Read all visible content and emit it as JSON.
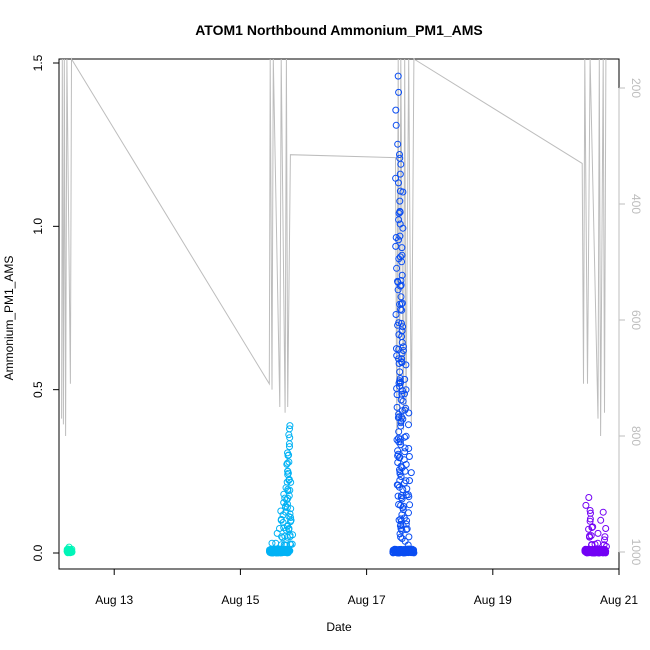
{
  "chart_data": {
    "type": "scatter",
    "title": "ATOM1 Northbound Ammonium_PM1_AMS",
    "xlabel": "Date",
    "ylabel": "Ammonium_PM1_AMS",
    "x_range_days": [
      "Aug 12 03:00",
      "Aug 21 00:00"
    ],
    "ylim": [
      0,
      1.5
    ],
    "x_ticks": [
      "Aug 13",
      "Aug 15",
      "Aug 17",
      "Aug 19",
      "Aug 21"
    ],
    "y_ticks": [
      "0.0",
      "0.5",
      "1.0",
      "1.5"
    ],
    "secondary_axis": {
      "side": "right",
      "color": "#bdbdbd",
      "ticks": [
        "200",
        "400",
        "600",
        "800",
        "1000"
      ],
      "range": [
        120,
        1020
      ],
      "inverted": true
    },
    "series": [
      {
        "color": "#00f5b8",
        "time_range": [
          "Aug 12 06:00",
          "Aug 12 08:00"
        ],
        "points": [
          [
            "Aug 12 06:10",
            0.005
          ],
          [
            "Aug 12 06:30",
            0.012
          ],
          [
            "Aug 12 06:50",
            0.018
          ],
          [
            "Aug 12 07:10",
            0.008
          ],
          [
            "Aug 12 07:30",
            0.01
          ],
          [
            "Aug 12 07:50",
            0.004
          ]
        ]
      },
      {
        "color": "#00b2f5",
        "time_range": [
          "Aug 15 11:00",
          "Aug 15 19:00"
        ],
        "points": [
          [
            "Aug 15 12:00",
            0.03
          ],
          [
            "Aug 15 14:00",
            0.06
          ],
          [
            "Aug 15 15:30",
            0.1
          ],
          [
            "Aug 15 16:30",
            0.18
          ],
          [
            "Aug 15 17:10",
            0.14
          ],
          [
            "Aug 15 18:00",
            0.24
          ],
          [
            "Aug 15 18:20",
            0.3
          ],
          [
            "Aug 15 18:40",
            0.38
          ],
          [
            "Aug 15 18:50",
            0.39
          ]
        ]
      },
      {
        "color": "#0a4df2",
        "time_range": [
          "Aug 17 10:00",
          "Aug 17 18:00"
        ],
        "points": [
          [
            "Aug 17 12:00",
            1.46
          ],
          [
            "Aug 17 12:10",
            1.41
          ],
          [
            "Aug 17 12:30",
            1.22
          ],
          [
            "Aug 17 13:00",
            1.19
          ],
          [
            "Aug 17 12:50",
            1.16
          ],
          [
            "Aug 17 12:20",
            1.04
          ],
          [
            "Aug 17 12:40",
            0.97
          ],
          [
            "Aug 17 13:10",
            0.82
          ],
          [
            "Aug 17 13:30",
            0.68
          ],
          [
            "Aug 17 14:00",
            0.62
          ],
          [
            "Aug 17 15:00",
            0.5
          ],
          [
            "Aug 17 16:00",
            0.32
          ]
        ]
      },
      {
        "color": "#7300f5",
        "time_range": [
          "Aug 20 11:00",
          "Aug 20 19:00"
        ],
        "points": [
          [
            "Aug 20 12:30",
            0.17
          ],
          [
            "Aug 20 13:00",
            0.13
          ],
          [
            "Aug 20 14:00",
            0.08
          ],
          [
            "Aug 20 16:00",
            0.06
          ],
          [
            "Aug 20 18:00",
            0.125
          ],
          [
            "Aug 20 18:30",
            0.04
          ]
        ]
      }
    ],
    "altitude_line": {
      "color": "#bdbdbd",
      "points": [
        [
          "Aug 12 04:00",
          770
        ],
        [
          "Aug 12 04:15",
          140
        ],
        [
          "Aug 12 04:40",
          780
        ],
        [
          "Aug 12 05:00",
          140
        ],
        [
          "Aug 12 05:30",
          800
        ],
        [
          "Aug 12 06:00",
          140
        ],
        [
          "Aug 12 07:20",
          710
        ],
        [
          "Aug 12 07:45",
          140
        ],
        [
          "Aug 15 11:00",
          710
        ],
        [
          "Aug 15 11:20",
          140
        ],
        [
          "Aug 15 12:00",
          720
        ],
        [
          "Aug 15 12:30",
          140
        ],
        [
          "Aug 15 15:00",
          750
        ],
        [
          "Aug 15 15:30",
          140
        ],
        [
          "Aug 15 17:00",
          760
        ],
        [
          "Aug 15 17:30",
          140
        ],
        [
          "Aug 15 18:00",
          750
        ],
        [
          "Aug 15 19:00",
          315
        ],
        [
          "Aug 17 11:00",
          320
        ],
        [
          "Aug 17 11:30",
          800
        ],
        [
          "Aug 17 12:00",
          140
        ],
        [
          "Aug 17 12:30",
          780
        ],
        [
          "Aug 17 13:00",
          140
        ],
        [
          "Aug 17 14:00",
          790
        ],
        [
          "Aug 17 14:30",
          140
        ],
        [
          "Aug 17 15:00",
          760
        ],
        [
          "Aug 17 16:00",
          140
        ],
        [
          "Aug 17 17:00",
          780
        ],
        [
          "Aug 17 18:00",
          120
        ],
        [
          "Aug 20 10:00",
          330
        ],
        [
          "Aug 20 10:30",
          710
        ],
        [
          "Aug 20 11:00",
          140
        ],
        [
          "Aug 20 12:00",
          710
        ],
        [
          "Aug 20 13:00",
          140
        ],
        [
          "Aug 20 16:00",
          770
        ],
        [
          "Aug 20 16:30",
          140
        ],
        [
          "Aug 20 17:00",
          800
        ],
        [
          "Aug 20 18:00",
          140
        ],
        [
          "Aug 20 18:30",
          760
        ],
        [
          "Aug 20 19:00",
          140
        ]
      ]
    }
  }
}
